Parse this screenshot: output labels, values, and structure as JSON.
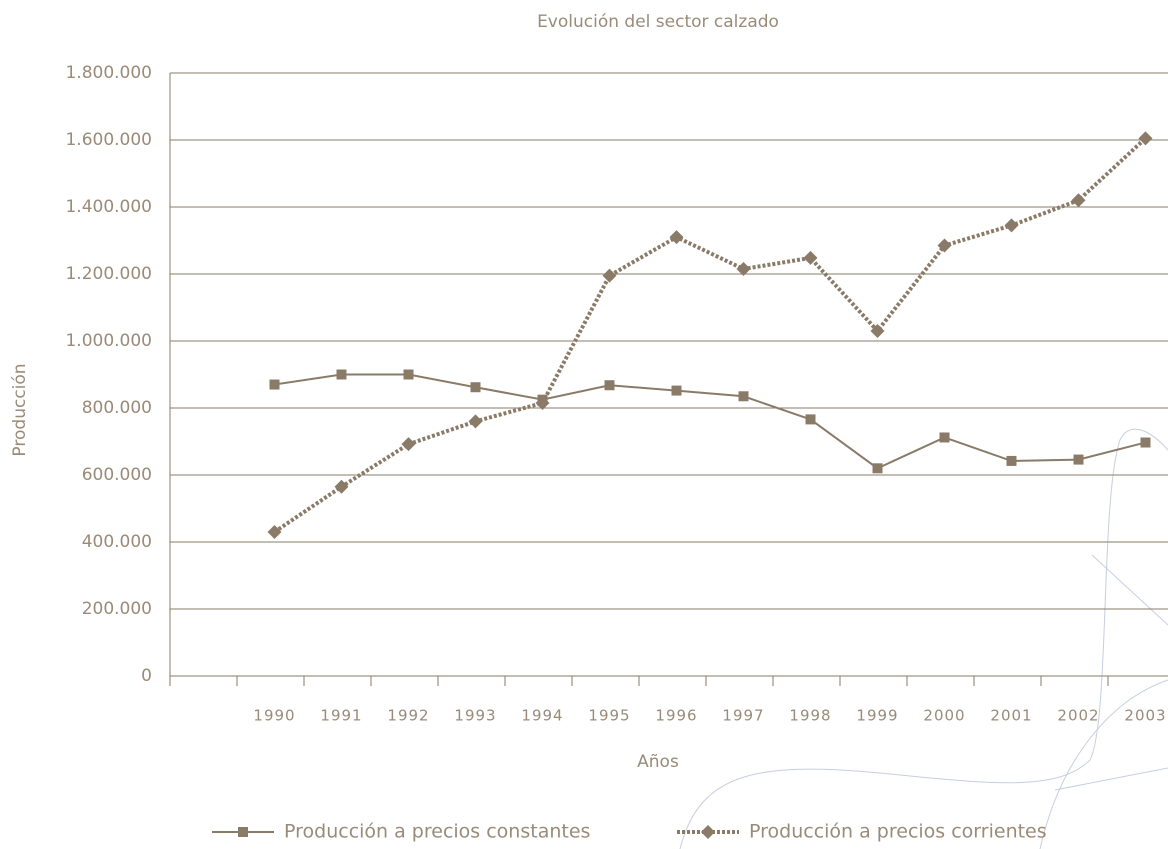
{
  "chart_data": {
    "type": "line",
    "title": "Evolución del sector calzado",
    "x_label": "Años",
    "y_label": "Producción",
    "categories": [
      "1990",
      "1991",
      "1992",
      "1993",
      "1994",
      "1995",
      "1996",
      "1997",
      "1998",
      "1999",
      "2000",
      "2001",
      "2002",
      "2003"
    ],
    "series": [
      {
        "name": "Producción a precios constantes",
        "color": "#8a7b69",
        "line": "solid",
        "marker": "square",
        "values": [
          870000,
          900000,
          900000,
          862000,
          825000,
          868000,
          852000,
          835000,
          766000,
          620000,
          712000,
          642000,
          646000,
          697000
        ]
      },
      {
        "name": "Producción a precios corrientes",
        "color": "#8a7b69",
        "line": "dotted",
        "marker": "diamond",
        "values": [
          430000,
          565000,
          692000,
          760000,
          815000,
          1195000,
          1310000,
          1215000,
          1248000,
          1030000,
          1285000,
          1345000,
          1420000,
          1605000
        ]
      }
    ],
    "ylim": [
      0,
      1800000
    ],
    "yticks": [
      0,
      {
        "value": 200000,
        "label": "200.000"
      },
      {
        "value": 400000,
        "label": "400.000"
      },
      {
        "value": 600000,
        "label": "600.000"
      },
      {
        "value": 800000,
        "label": "800.000"
      },
      {
        "value": 1000000,
        "label": "1.000.000"
      },
      {
        "value": 1200000,
        "label": "1.200.000"
      },
      {
        "value": 1400000,
        "label": "1.400.000"
      },
      {
        "value": 1600000,
        "label": "1.600.000"
      },
      {
        "value": 1800000,
        "label": "1.800.000"
      }
    ],
    "grid": true,
    "legend": "bottom"
  }
}
